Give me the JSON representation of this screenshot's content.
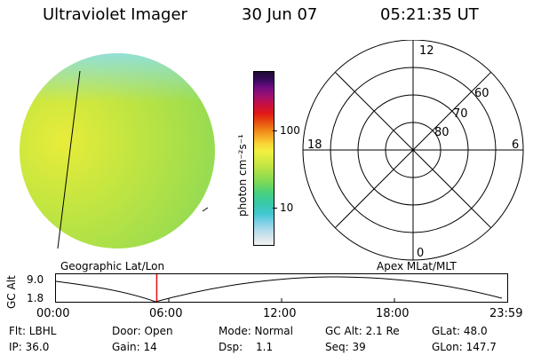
{
  "header": {
    "instrument": "Ultraviolet Imager",
    "date": "30 Jun 07",
    "time": "05:21:35 UT"
  },
  "colorbar": {
    "unit_label": "photon cm⁻²s⁻¹",
    "tick_100": "100",
    "tick_10": "10",
    "colors": [
      "#f2f2f2",
      "#d8e6ec",
      "#b6dcec",
      "#7fd0e6",
      "#40c8d2",
      "#38c8a8",
      "#48d080",
      "#7ad858",
      "#a8e048",
      "#d0e840",
      "#f2f040",
      "#f8d838",
      "#f8b028",
      "#f08818",
      "#e85010",
      "#e01818",
      "#c81040",
      "#a01070",
      "#700c80",
      "#3c0a60",
      "#1a0a30"
    ]
  },
  "polar": {
    "lat_labels": [
      "60",
      "70",
      "80"
    ],
    "mlt_labels": {
      "top": "12",
      "right": "6",
      "bottom": "0",
      "left": "18"
    }
  },
  "timeline": {
    "left_label": "Geographic Lat/Lon",
    "right_label": "Apex MLat/MLT",
    "axis_title": "GC Alt",
    "y_top": "9.0",
    "y_bottom": "1.8",
    "x_ticks": [
      "00:00",
      "06:00",
      "12:00",
      "18:00",
      "23:59"
    ],
    "current_time_hours": 5.36
  },
  "info": {
    "flt": "Flt: LBHL",
    "ip": "IP: 36.0",
    "door": "Door: Open",
    "gain": "Gain: 14",
    "mode": "Mode: Normal",
    "dsp_label": "Dsp:",
    "dsp_value": "1.1",
    "gc_alt": "GC Alt: 2.1 Re",
    "seq": "Seq: 39",
    "glat": "GLat:  48.0",
    "glon": "GLon: 147.7"
  }
}
